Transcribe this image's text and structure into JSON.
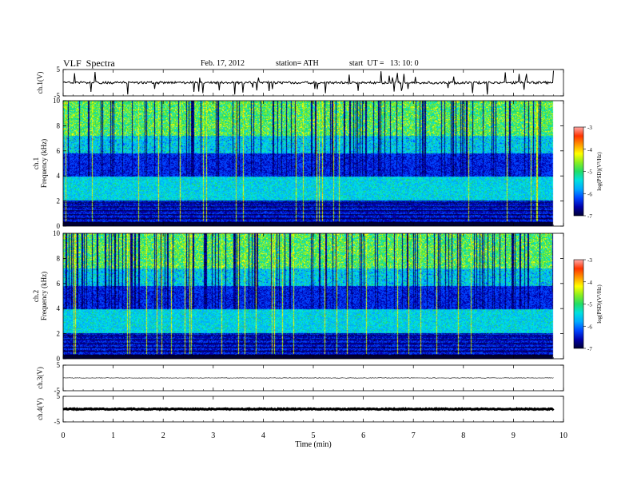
{
  "header": {
    "title": "VLF  Spectra",
    "date": "Feb. 17, 2012",
    "station": "station= ATH",
    "start": "start  UT =   13: 10: 0"
  },
  "chart_data": [
    {
      "id": "ch1-waveform",
      "type": "line",
      "ylabel": "ch.1(V)",
      "ylim": [
        -5,
        5
      ],
      "yticks": [
        "5",
        "-5"
      ],
      "baseline_v": 0,
      "grid": false
    },
    {
      "id": "ch1-spectrogram",
      "type": "heatmap",
      "ylabel": "ch.1\nFrequency (kHz)",
      "ylabel_lines": [
        "ch.1",
        "Frequency (kHz)"
      ],
      "ylim": [
        0,
        10
      ],
      "yticks": [
        "0",
        "2",
        "4",
        "6",
        "8",
        "10"
      ],
      "xlim": [
        0,
        10
      ],
      "data_extent_min": 9.8,
      "colorbar": {
        "label": "log(PSD)(V²/Hz)",
        "range": [
          -7,
          -3
        ],
        "ticks": [
          "-3",
          "-4",
          "-5",
          "-6",
          "-7"
        ]
      }
    },
    {
      "id": "ch2-spectrogram",
      "type": "heatmap",
      "ylabel_lines": [
        "ch.2",
        "Frequency (kHz)"
      ],
      "ylim": [
        0,
        10
      ],
      "yticks": [
        "0",
        "2",
        "4",
        "6",
        "8",
        "10"
      ],
      "xlim": [
        0,
        10
      ],
      "data_extent_min": 9.8,
      "colorbar": {
        "label": "log(PSD)(V²/Hz)",
        "range": [
          -7,
          -3
        ],
        "ticks": [
          "-3",
          "-4",
          "-5",
          "-6",
          "-7"
        ]
      }
    },
    {
      "id": "ch3-waveform",
      "type": "line",
      "ylabel": "ch.3(V)",
      "ylim": [
        -5,
        5
      ],
      "yticks": [
        "5",
        "-5"
      ],
      "baseline_v": 0
    },
    {
      "id": "ch4-waveform",
      "type": "line",
      "ylabel": "ch.4(V)",
      "ylim": [
        -5,
        5
      ],
      "yticks": [
        "5",
        "-5"
      ],
      "baseline_v": 0
    }
  ],
  "xaxis": {
    "label": "Time  (min)",
    "xlim": [
      0,
      10
    ],
    "ticks": [
      "0",
      "1",
      "2",
      "3",
      "4",
      "5",
      "6",
      "7",
      "8",
      "9",
      "10"
    ]
  },
  "colormap": [
    "#000033",
    "#0000aa",
    "#0044ff",
    "#00aaff",
    "#00e0e0",
    "#22dd66",
    "#88ee22",
    "#ffff00",
    "#ff9900",
    "#ff3300",
    "#ffaaaa"
  ]
}
